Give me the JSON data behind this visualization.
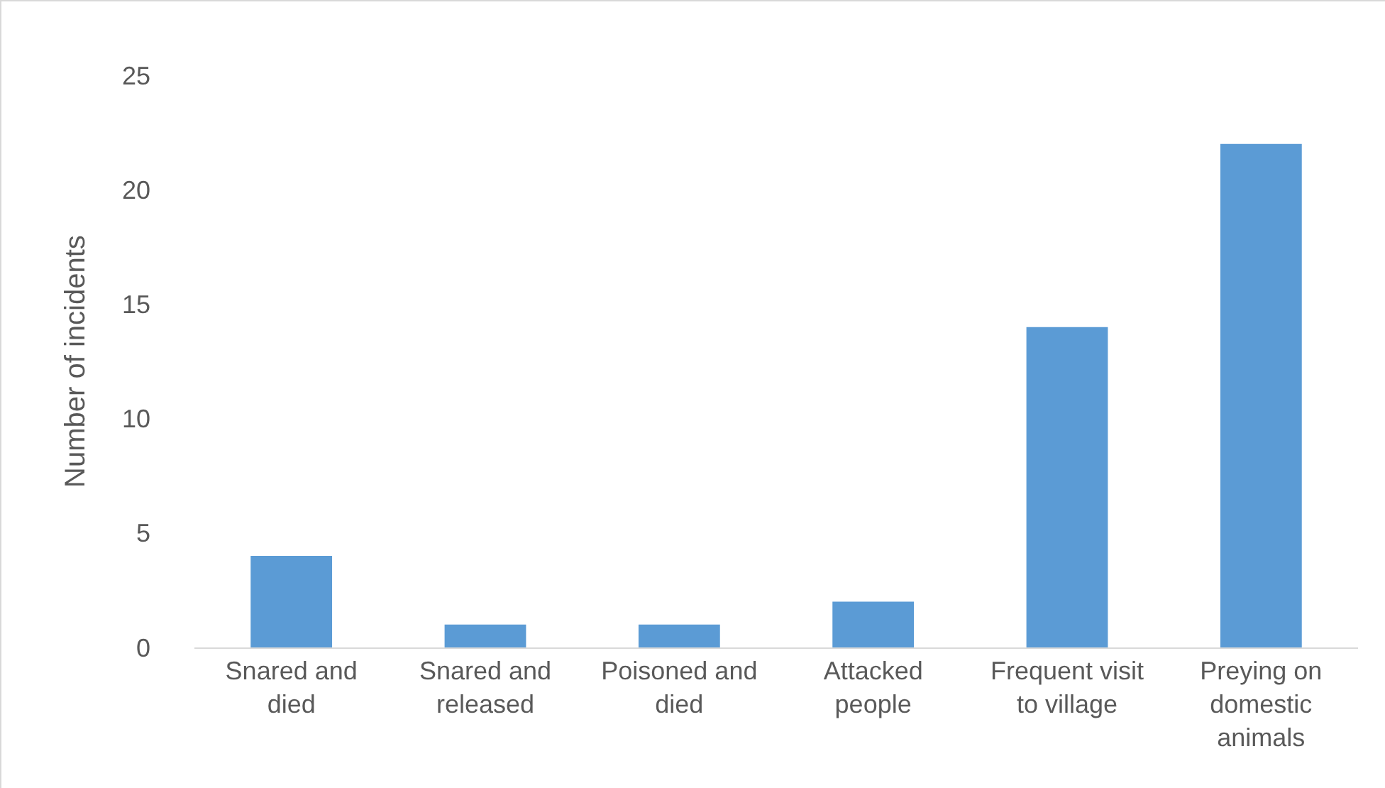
{
  "chart_data": {
    "type": "bar",
    "ylabel": "Number of incidents",
    "categories": [
      "Snared and died",
      "Snared and released",
      "Poisoned and died",
      "Attacked people",
      "Frequent visit to village",
      "Preying on domestic animals"
    ],
    "values": [
      4,
      1,
      1,
      2,
      14,
      22
    ],
    "color": "#5b9bd5",
    "ylim": [
      0,
      25
    ],
    "yticks": [
      0,
      5,
      10,
      15,
      20,
      25
    ],
    "grid": false
  }
}
